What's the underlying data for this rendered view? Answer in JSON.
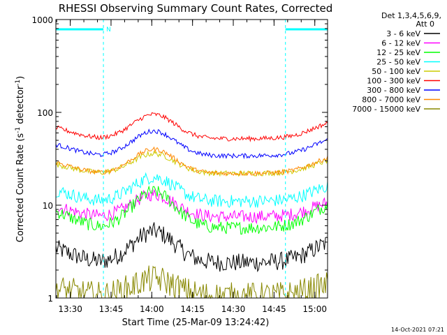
{
  "chart_data": {
    "type": "line",
    "title": "RHESSI Observing Summary Count Rates, Corrected",
    "ylabel_main": "Corrected Count Rate (s",
    "ylabel_sup1": "-1",
    "ylabel_mid": " detector",
    "ylabel_sup2": "-1",
    "ylabel_end": ")",
    "xlabel": "Start Time (25-Mar-09 13:24:42)",
    "footer": "14-Oct-2021 07:21",
    "flag_label": "N",
    "yscale": "log",
    "ylim": [
      1,
      1000
    ],
    "xlim_minutes": [
      0,
      100
    ],
    "ytick_labels": [
      "1",
      "10",
      "100",
      "1000"
    ],
    "xtick_labels": [
      "13:30",
      "13:45",
      "14:00",
      "14:15",
      "14:30",
      "14:45",
      "15:00"
    ],
    "xtick_minutes": [
      5.3,
      20.3,
      35.3,
      50.3,
      65.3,
      80.3,
      95.3
    ],
    "legend_header": [
      "Det 1,3,4,5,6,9,",
      "Att 0"
    ],
    "night_minutes": [
      [
        0,
        17.5
      ],
      [
        84.5,
        100
      ]
    ],
    "flag_segments_minutes": [
      [
        0,
        17.5
      ],
      [
        84.5,
        100
      ]
    ],
    "series": [
      {
        "name": "3 - 6 keV",
        "color": "#000000",
        "base": 2.4,
        "peak": 5.2,
        "noise": 0.1
      },
      {
        "name": "6 - 12 keV",
        "color": "#ff00ff",
        "base": 7.5,
        "peak": 13,
        "noise": 0.07
      },
      {
        "name": "12 - 25 keV",
        "color": "#00ff00",
        "base": 5.7,
        "peak": 14,
        "noise": 0.07
      },
      {
        "name": "25 - 50 keV",
        "color": "#00ffff",
        "base": 11,
        "peak": 20,
        "noise": 0.07
      },
      {
        "name": "50 - 100 keV",
        "color": "#cccc00",
        "base": 22,
        "peak": 36,
        "noise": 0.03
      },
      {
        "name": "100 - 300 keV",
        "color": "#ff0000",
        "base": 52,
        "peak": 95,
        "noise": 0.025
      },
      {
        "name": "300 - 800 keV",
        "color": "#0000ff",
        "base": 34,
        "peak": 63,
        "noise": 0.025
      },
      {
        "name": "800 - 7000 keV",
        "color": "#ff8800",
        "base": 22,
        "peak": 40,
        "noise": 0.025
      },
      {
        "name": "7000 - 15000 keV",
        "color": "#888800",
        "base": 1.05,
        "peak": 1.6,
        "noise": 0.15
      }
    ]
  }
}
